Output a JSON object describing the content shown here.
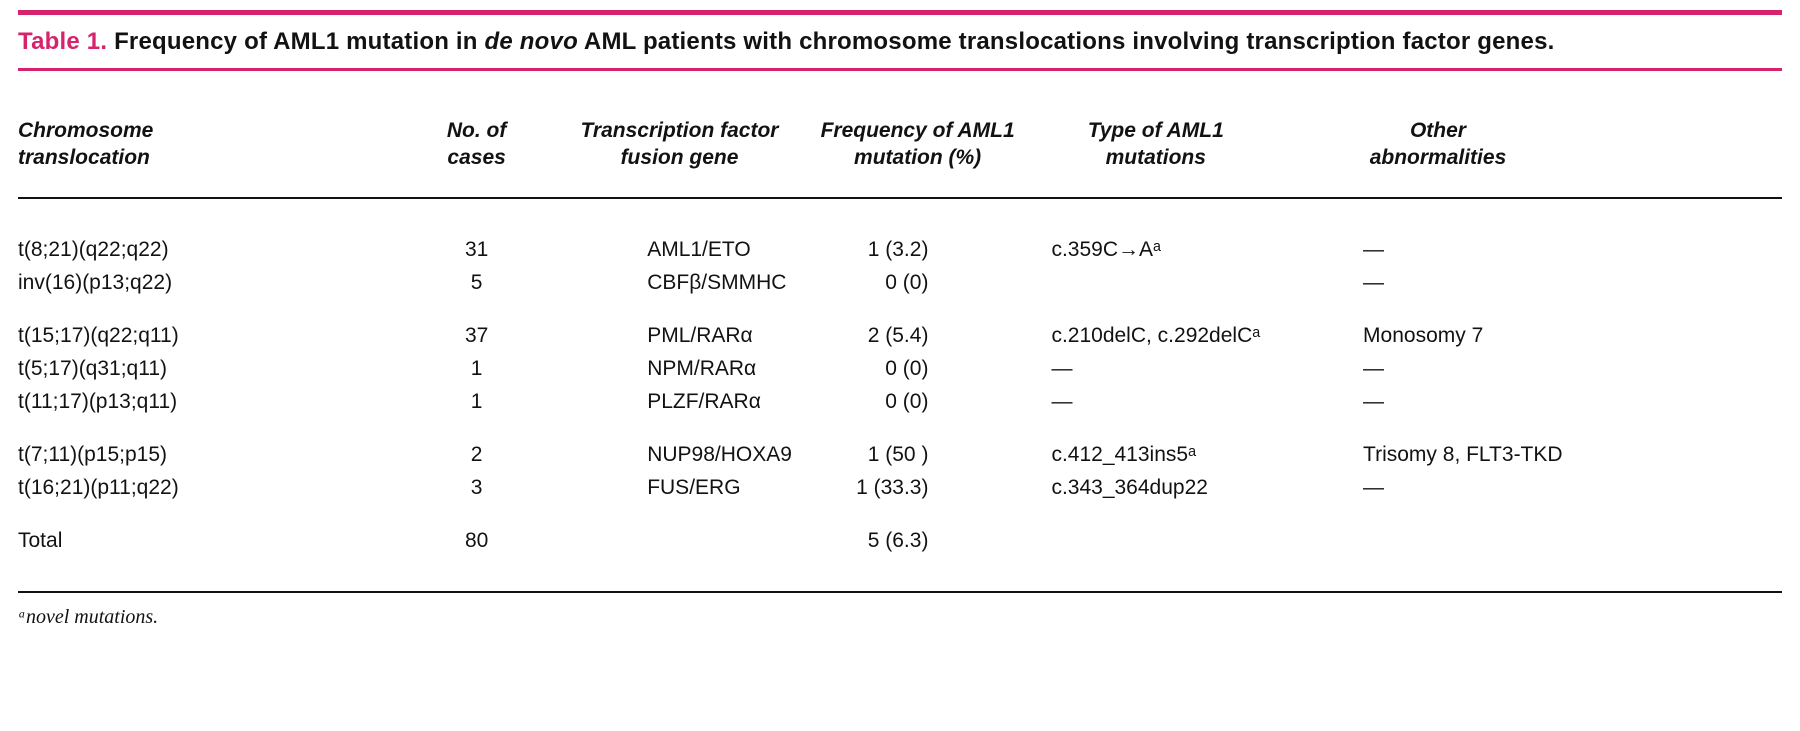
{
  "theme": {
    "accent_color": "#d6246c",
    "ink_color": "#121212"
  },
  "title": {
    "table_label": "Table 1.",
    "segment1": "Frequency of AML1 mutation in",
    "italic_segment": "de novo",
    "segment2": "AML patients with chromosome translocations involving transcription factor genes."
  },
  "columns": [
    {
      "line1": "Chromosome",
      "line2": "translocation"
    },
    {
      "line1": "No. of",
      "line2": "cases"
    },
    {
      "line1": "Transcription factor",
      "line2": "fusion gene"
    },
    {
      "line1": "Frequency of AML1",
      "line2": "mutation (%)"
    },
    {
      "line1": "Type of AML1",
      "line2": "mutations"
    },
    {
      "line1": "Other",
      "line2": "abnormalities"
    }
  ],
  "groups": [
    {
      "rows": [
        [
          "t(8;21)(q22;q22)",
          "31",
          "AML1/ETO",
          "1 (3.2)",
          "c.359C→Aᵃ",
          "—"
        ],
        [
          "inv(16)(p13;q22)",
          "5",
          "CBFβ/SMMHC",
          "0 (0)",
          "",
          "—"
        ]
      ]
    },
    {
      "rows": [
        [
          "t(15;17)(q22;q11)",
          "37",
          "PML/RARα",
          "2 (5.4)",
          "c.210delC, c.292delCᵃ",
          "Monosomy 7"
        ],
        [
          "t(5;17)(q31;q11)",
          "1",
          "NPM/RARα",
          "0 (0)",
          "—",
          "—"
        ],
        [
          "t(11;17)(p13;q11)",
          "1",
          "PLZF/RARα",
          "0 (0)",
          "—",
          "—"
        ]
      ]
    },
    {
      "rows": [
        [
          "t(7;11)(p15;p15)",
          "2",
          "NUP98/HOXA9",
          "1 (50 )",
          "c.412_413ins5ᵃ",
          "Trisomy 8, FLT3-TKD"
        ],
        [
          "t(16;21)(p11;q22)",
          "3",
          "FUS/ERG",
          "1 (33.3)",
          "c.343_364dup22",
          "—"
        ]
      ]
    },
    {
      "rows": [
        [
          "Total",
          "80",
          "",
          "5 (6.3)",
          "",
          ""
        ]
      ]
    }
  ],
  "footnote": "ᵃnovel mutations."
}
